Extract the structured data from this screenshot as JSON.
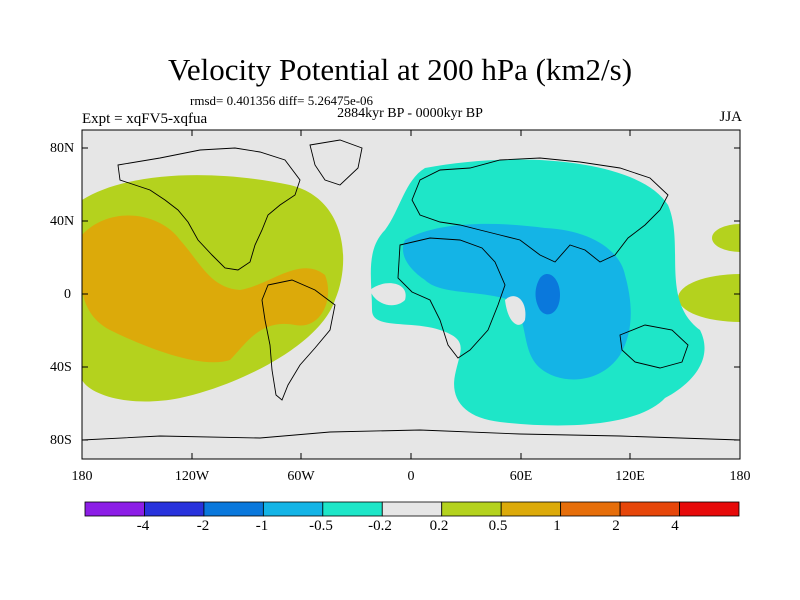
{
  "title": "Velocity Potential at 200 hPa (km2/s)",
  "stats": "rmsd= 0.401356 diff= 5.26475e-06",
  "subtitle": "2884kyr BP - 0000kyr BP",
  "experiment": "Expt = xqFV5-xqfua",
  "season": "JJA",
  "map": {
    "lat_labels": [
      "80N",
      "40N",
      "0",
      "40S",
      "80S"
    ],
    "lon_labels": [
      "180",
      "120W",
      "60W",
      "0",
      "60E",
      "120E",
      "180"
    ],
    "colors": {
      "background": "#e6e6e6",
      "pos_weak": "#b4d21e",
      "pos_mid": "#dcaa0a",
      "neg_weak": "#1ee6c8",
      "neg_mid": "#14b4e6",
      "neg_strong": "#0a78dc"
    }
  },
  "colorbar": {
    "labels": [
      "-4",
      "-2",
      "-1",
      "-0.5",
      "-0.2",
      "0.2",
      "0.5",
      "1",
      "2",
      "4"
    ],
    "colors": [
      "#8c1ee6",
      "#2832dc",
      "#0a78dc",
      "#14b4e6",
      "#1ee6c8",
      "#e6e6e6",
      "#b4d21e",
      "#dcaa0a",
      "#e66e0a",
      "#e6460a",
      "#e60a0a"
    ]
  }
}
